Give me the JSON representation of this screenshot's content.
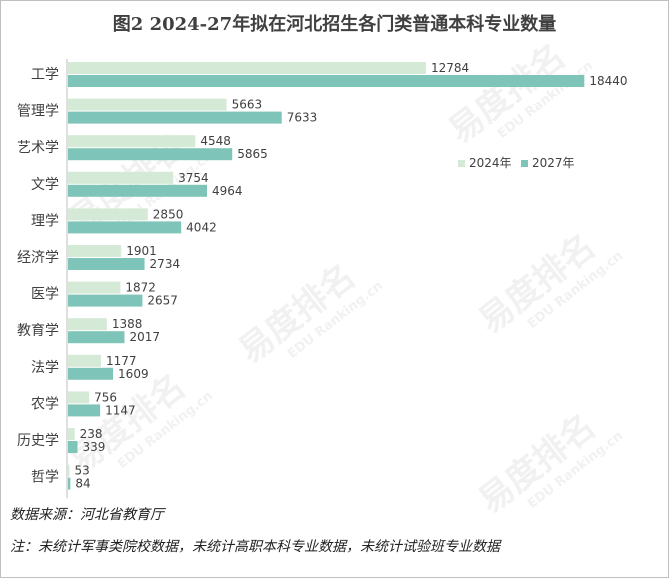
{
  "chart_data": {
    "type": "bar",
    "orientation": "horizontal",
    "title": "图2  2024-27年拟在河北招生各门类普通本科专业数量",
    "categories": [
      "工学",
      "管理学",
      "艺术学",
      "文学",
      "理学",
      "经济学",
      "医学",
      "教育学",
      "法学",
      "农学",
      "历史学",
      "哲学"
    ],
    "series": [
      {
        "name": "2024年",
        "color": "#d5ead6",
        "values": [
          12784,
          5663,
          4548,
          3754,
          2850,
          1901,
          1872,
          1388,
          1177,
          756,
          238,
          53
        ]
      },
      {
        "name": "2027年",
        "color": "#7fc4b8",
        "values": [
          18440,
          7633,
          5865,
          4964,
          4042,
          2734,
          2657,
          2017,
          1609,
          1147,
          339,
          84
        ]
      }
    ],
    "xlim": [
      0,
      20000
    ],
    "data_labels": true,
    "legend_position": "right",
    "grid": false
  },
  "footnotes": {
    "source": "数据来源：河北省教育厅",
    "note": "注：未统计军事类院校数据，未统计高职本科专业数据，未统计试验班专业数据"
  },
  "watermark": {
    "mark": "易度排名",
    "sub": "EDU Ranking.cn"
  }
}
